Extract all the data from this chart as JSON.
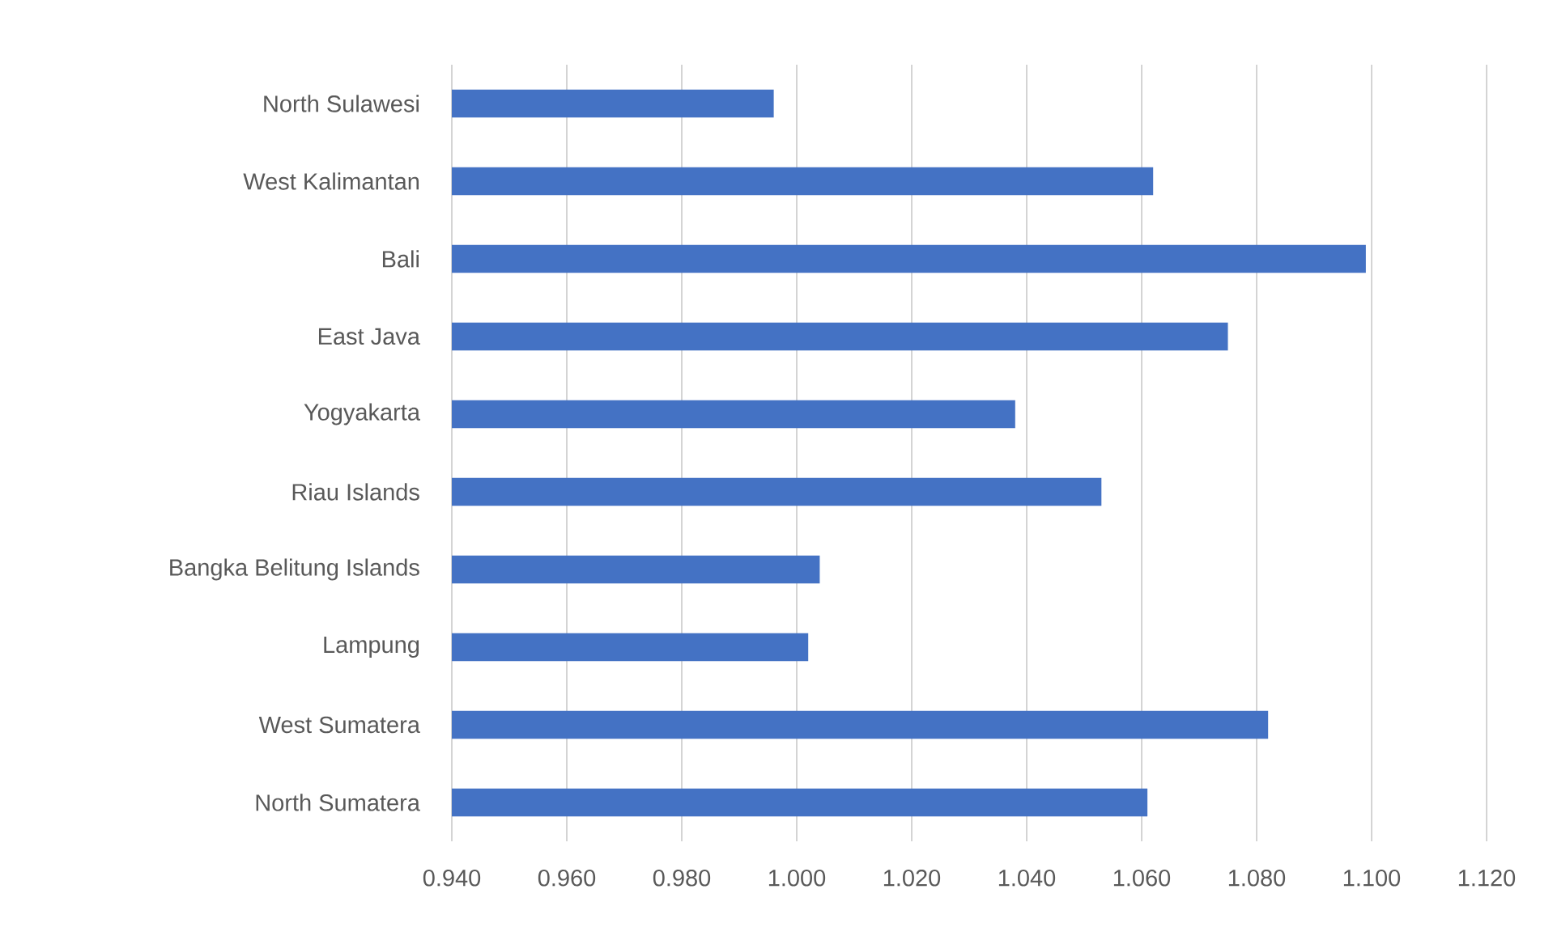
{
  "chart_data": {
    "type": "bar",
    "orientation": "horizontal",
    "categories": [
      "North Sulawesi",
      "West Kalimantan",
      "Bali",
      "East Java",
      "Yogyakarta",
      "Riau Islands",
      "Bangka Belitung Islands",
      "Lampung",
      "West Sumatera",
      "North Sumatera"
    ],
    "values": [
      0.996,
      1.062,
      1.099,
      1.075,
      1.038,
      1.053,
      1.004,
      1.002,
      1.082,
      1.061
    ],
    "color": "#4472c4",
    "xlim": [
      0.94,
      1.12
    ],
    "xticks": [
      {
        "value": 0.94,
        "label": "0.940"
      },
      {
        "value": 0.96,
        "label": "0.960"
      },
      {
        "value": 0.98,
        "label": "0.980"
      },
      {
        "value": 1.0,
        "label": "1.000"
      },
      {
        "value": 1.02,
        "label": "1.020"
      },
      {
        "value": 1.04,
        "label": "1.040"
      },
      {
        "value": 1.06,
        "label": "1.060"
      },
      {
        "value": 1.08,
        "label": "1.080"
      },
      {
        "value": 1.1,
        "label": "1.100"
      },
      {
        "value": 1.12,
        "label": "1.120"
      }
    ],
    "grid": "x"
  }
}
